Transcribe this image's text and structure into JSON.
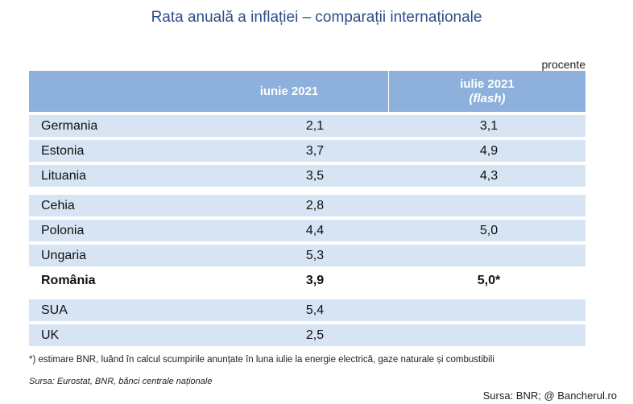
{
  "title": "Rata anuală a inflației – comparații internaționale",
  "unit": "procente",
  "header": {
    "col1": "iunie 2021",
    "col2_line1": "iulie 2021",
    "col2_line2": "(flash)"
  },
  "groups": [
    [
      {
        "country": "Germania",
        "june": "2,1",
        "july": "3,1"
      },
      {
        "country": "Estonia",
        "june": "3,7",
        "july": "4,9"
      },
      {
        "country": "Lituania",
        "june": "3,5",
        "july": "4,3"
      }
    ],
    [
      {
        "country": "Cehia",
        "june": "2,8",
        "july": ""
      },
      {
        "country": "Polonia",
        "june": "4,4",
        "july": "5,0"
      },
      {
        "country": "Ungaria",
        "june": "5,3",
        "july": ""
      },
      {
        "country": "România",
        "june": "3,9",
        "july": "5,0*"
      }
    ],
    [
      {
        "country": "SUA",
        "june": "5,4",
        "july": ""
      },
      {
        "country": "UK",
        "june": "2,5",
        "july": ""
      }
    ]
  ],
  "footnote": "*) estimare BNR, luând în calcul scumpirile anunțate în luna iulie la energie electrică, gaze naturale și combustibili",
  "source": "Sursa: Eurostat, BNR, bănci centrale naționale",
  "credit": "Sursa: BNR; @ Bancherul.ro"
}
